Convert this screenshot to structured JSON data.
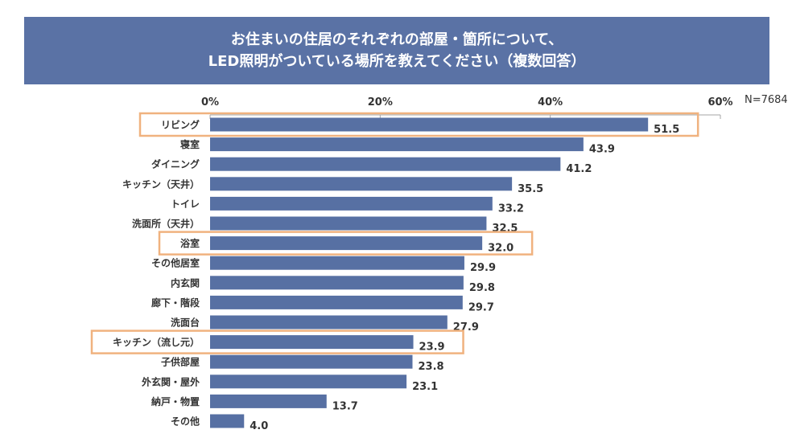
{
  "title": {
    "line1": "お住まいの住居のそれぞれの部屋・箇所について、",
    "line2": "LED照明がついている場所を教えてください（複数回答）"
  },
  "sample_size": "N=7684",
  "colors": {
    "banner": "#5a72a5",
    "bar": "#5770a3",
    "highlight_box": "#f0b27f",
    "axis": "#a6a6a6",
    "text": "#333333"
  },
  "chart_data": {
    "type": "bar",
    "orientation": "horizontal",
    "title": "お住まいの住居のそれぞれの部屋・箇所について、LED照明がついている場所を教えてください（複数回答）",
    "xlabel": "",
    "ylabel": "",
    "xlim": [
      0,
      60
    ],
    "x_ticks": [
      0,
      20,
      40,
      60
    ],
    "x_tick_labels": [
      "0%",
      "20%",
      "40%",
      "60%"
    ],
    "axis_position": "top",
    "grid": false,
    "legend": "none",
    "annotation": "N=7684",
    "categories": [
      "リビング",
      "寝室",
      "ダイニング",
      "キッチン（天井）",
      "トイレ",
      "洗面所（天井）",
      "浴室",
      "その他居室",
      "内玄関",
      "廊下・階段",
      "洗面台",
      "キッチン（流し元）",
      "子供部屋",
      "外玄関・屋外",
      "納戸・物置",
      "その他"
    ],
    "values": [
      51.5,
      43.9,
      41.2,
      35.5,
      33.2,
      32.5,
      32.0,
      29.9,
      29.8,
      29.7,
      27.9,
      23.9,
      23.8,
      23.1,
      13.7,
      4.0
    ],
    "value_labels": [
      "51.5",
      "43.9",
      "41.2",
      "35.5",
      "33.2",
      "32.5",
      "32.0",
      "29.9",
      "29.8",
      "29.7",
      "27.9",
      "23.9",
      "23.8",
      "23.1",
      "13.7",
      "4.0"
    ],
    "highlighted": [
      "リビング",
      "浴室",
      "キッチン（流し元）"
    ]
  }
}
